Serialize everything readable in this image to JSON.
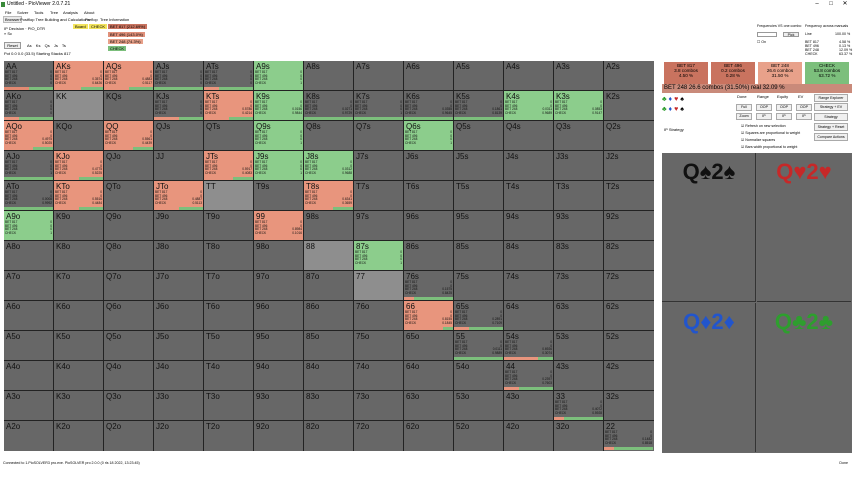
{
  "window": {
    "title": "Untitled - PioViewer 2.0.7.21",
    "controls": [
      "–",
      "□",
      "✕"
    ]
  },
  "menu": [
    "File",
    "Solver",
    "Tools",
    "Tree",
    "Analysis",
    "About"
  ],
  "tabs": [
    "Browser",
    "Postflop Tree Building and Calculations",
    "Preflop",
    "Tree Information"
  ],
  "info": {
    "line1": "IP Decision · PIO_DTR",
    "line2": "» Sc",
    "reset": "Reset",
    "suits": [
      "As",
      "Ks",
      "Qs",
      "Js",
      "Ts"
    ],
    "pot": "Pot 0.0 0.0 (33.5) Starting Stacks 817"
  },
  "legend": {
    "board": "Board",
    "check": "CHECK",
    "bet1": "BET 817 (212.69%)",
    "bet2": "BET 496 (143.0%)",
    "bet3": "BET 248 (74.3%)",
    "check2": "CHECK"
  },
  "freq": {
    "hdr1": "Frequencies VS one combo",
    "hdr2": "Frequency across manuals",
    "input_value": "",
    "pick": "Pick",
    "on": "On",
    "line": "Line",
    "line_val": "100.00 %",
    "rows": [
      {
        "name": "BET 817",
        "v": "4.58 %"
      },
      {
        "name": "BET 496",
        "v": "0.13 %"
      },
      {
        "name": "BET 248",
        "v": "12.09 %"
      },
      {
        "name": "CHECK",
        "v": "63.37 %"
      }
    ]
  },
  "actions": [
    {
      "name": "BET 817",
      "combos": "3.8 combos",
      "pct": "4.50 %",
      "color": "#c9735f"
    },
    {
      "name": "BET 496",
      "combos": "0.2 combos",
      "pct": "0.28 %",
      "color": "#c9735f"
    },
    {
      "name": "BET 248",
      "combos": "26.6 combos",
      "pct": "31.50 %",
      "color": "#e8a18a"
    },
    {
      "name": "CHECK",
      "combos": "53.8 combos",
      "pct": "63.72 %",
      "color": "#7cbf7c"
    }
  ],
  "summary": "BET 248   26.6 combos (31.50%) real 32.09 %",
  "subtabs": [
    "Done",
    "Range",
    "Equity",
    "EV"
  ],
  "smallbtns": [
    "Full",
    "OOP",
    "OOP",
    "OOP",
    "Zoom",
    "IP",
    "IP",
    "IP"
  ],
  "rightbtns": [
    "Range Explorer",
    "Strategy + EV",
    "Strategy",
    "Strategy + Reset",
    "Compare Actions"
  ],
  "checks": [
    "Refresh on new selection",
    "Squares are proportional to weight",
    "Normalize squares",
    "Bars width proportional to weight"
  ],
  "ip_label": "IP Strategy",
  "boards": [
    {
      "text": "Q♠2♠",
      "color": "#111111"
    },
    {
      "text": "Q♥2♥",
      "color": "#c62828"
    },
    {
      "text": "Q♦2♦",
      "color": "#2255cc"
    },
    {
      "text": "Q♣2♣",
      "color": "#2e9e2e"
    }
  ],
  "status_left": "Connected to 1.PioSOLVER3 pro.exe. PioSOLVER pro 2.0.0 (0 rls 18 2022, 13:23:45)",
  "status_right": "Done",
  "action_labels": [
    "BET 817",
    "BET 496",
    "BET 248",
    "CHECK"
  ],
  "hands": [
    [
      "AA",
      "AKs",
      "AQs",
      "AJs",
      "ATs",
      "A9s",
      "A8s",
      "A7s",
      "A6s",
      "A5s",
      "A4s",
      "A3s",
      "A2s"
    ],
    [
      "AKo",
      "KK",
      "KQs",
      "KJs",
      "KTs",
      "K9s",
      "K8s",
      "K7s",
      "K6s",
      "K5s",
      "K4s",
      "K3s",
      "K2s"
    ],
    [
      "AQo",
      "KQo",
      "QQ",
      "QJs",
      "QTs",
      "Q9s",
      "Q8s",
      "Q7s",
      "Q6s",
      "Q5s",
      "Q4s",
      "Q3s",
      "Q2s"
    ],
    [
      "AJo",
      "KJo",
      "QJo",
      "JJ",
      "JTs",
      "J9s",
      "J8s",
      "J7s",
      "J6s",
      "J5s",
      "J4s",
      "J3s",
      "J2s"
    ],
    [
      "ATo",
      "KTo",
      "QTo",
      "JTo",
      "TT",
      "T9s",
      "T8s",
      "T7s",
      "T6s",
      "T5s",
      "T4s",
      "T3s",
      "T2s"
    ],
    [
      "A9o",
      "K9o",
      "Q9o",
      "J9o",
      "T9o",
      "99",
      "98s",
      "97s",
      "96s",
      "95s",
      "94s",
      "93s",
      "92s"
    ],
    [
      "A8o",
      "K8o",
      "Q8o",
      "J8o",
      "T8o",
      "98o",
      "88",
      "87s",
      "86s",
      "85s",
      "84s",
      "83s",
      "82s"
    ],
    [
      "A7o",
      "K7o",
      "Q7o",
      "J7o",
      "T7o",
      "97o",
      "87o",
      "77",
      "76s",
      "75s",
      "74s",
      "73s",
      "72s"
    ],
    [
      "A6o",
      "K6o",
      "Q6o",
      "J6o",
      "T6o",
      "96o",
      "86o",
      "76o",
      "66",
      "65s",
      "64s",
      "63s",
      "62s"
    ],
    [
      "A5o",
      "K5o",
      "Q5o",
      "J5o",
      "T5o",
      "95o",
      "85o",
      "75o",
      "65o",
      "55",
      "54s",
      "53s",
      "52s"
    ],
    [
      "A4o",
      "K4o",
      "Q4o",
      "J4o",
      "T4o",
      "94o",
      "84o",
      "74o",
      "64o",
      "54o",
      "44",
      "43s",
      "42s"
    ],
    [
      "A3o",
      "K3o",
      "Q3o",
      "J3o",
      "T3o",
      "93o",
      "83o",
      "73o",
      "63o",
      "53o",
      "43o",
      "33",
      "32s"
    ],
    [
      "A2o",
      "K2o",
      "Q2o",
      "J2o",
      "T2o",
      "92o",
      "82o",
      "72o",
      "62o",
      "52o",
      "42o",
      "32o",
      "22"
    ]
  ],
  "strats": {
    "AA": {
      "bg": "#676767",
      "bars": [
        [
          "#e28a72",
          0.5
        ],
        [
          "#7cbf7c",
          0.5
        ]
      ],
      "vals": [
        "0",
        "0",
        "0",
        "0"
      ]
    },
    "AKs": {
      "bg": "#e8957d",
      "bars": [
        [
          "#e8957d",
          0.55
        ],
        [
          "#7cbf7c",
          0.45
        ]
      ],
      "vals": [
        "0",
        "0",
        "0.3574",
        "0.6426"
      ]
    },
    "AQs": {
      "bg": "#e8957d",
      "bars": [
        [
          "#e8957d",
          0.5
        ],
        [
          "#7cbf7c",
          0.5
        ]
      ],
      "vals": [
        "0",
        "0",
        "0.4883",
        "0.5117"
      ]
    },
    "AJs": {
      "bg": "#676767",
      "bars": [
        [
          "#7cbf7c",
          1
        ]
      ],
      "vals": [
        "0",
        "0",
        "0",
        "0"
      ]
    },
    "ATs": {
      "bg": "#676767",
      "bars": [
        [
          "#e8957d",
          0.3
        ],
        [
          "#7cbf7c",
          0.7
        ]
      ],
      "vals": [
        "0",
        "0",
        "0",
        "0"
      ]
    },
    "A9s": {
      "bg": "#8ccd8c",
      "bars": [
        [
          "#8ccd8c",
          1
        ]
      ],
      "vals": [
        "0",
        "0",
        "0",
        "1"
      ]
    },
    "AKo": {
      "bg": "#676767",
      "bars": [
        [
          "#e8957d",
          0.3
        ],
        [
          "#7cbf7c",
          0.7
        ]
      ],
      "vals": [
        "0",
        "0",
        "0",
        "0"
      ]
    },
    "KJs": {
      "bg": "#676767",
      "bars": [
        [
          "#e8957d",
          0.5
        ],
        [
          "#7cbf7c",
          0.5
        ]
      ],
      "vals": [
        "0",
        "0",
        "0",
        "0"
      ]
    },
    "KTs": {
      "bg": "#e8957d",
      "bars": [
        [
          "#e8957d",
          0.5
        ],
        [
          "#7cbf7c",
          0.5
        ]
      ],
      "vals": [
        "0",
        "0",
        "0.5786",
        "0.4214"
      ]
    },
    "K9s": {
      "bg": "#8ccd8c",
      "bars": [
        [
          "#8ccd8c",
          1
        ]
      ],
      "vals": [
        "0",
        "0",
        "0.0156",
        "0.9844"
      ]
    },
    "K8s": {
      "bg": "#676767",
      "bars": [
        [
          "#7cbf7c",
          1
        ]
      ],
      "vals": [
        "0",
        "0",
        "0.0271",
        "0.9729"
      ]
    },
    "K7s": {
      "bg": "#676767",
      "bars": [
        [
          "#7cbf7c",
          1
        ]
      ],
      "vals": [
        "0",
        "0",
        "0",
        "1"
      ]
    },
    "K6s": {
      "bg": "#676767",
      "bars": [
        [
          "#7cbf7c",
          1
        ]
      ],
      "vals": [
        "0",
        "0",
        "0.0355",
        "0.9645"
      ]
    },
    "K5s": {
      "bg": "#676767",
      "bars": [
        [
          "#7cbf7c",
          1
        ]
      ],
      "vals": [
        "0",
        "0",
        "0.1861",
        "0.8139"
      ]
    },
    "K4s": {
      "bg": "#8ccd8c",
      "bars": [
        [
          "#8ccd8c",
          1
        ]
      ],
      "vals": [
        "0",
        "0",
        "0.0311",
        "0.9689"
      ]
    },
    "K3s": {
      "bg": "#8ccd8c",
      "bars": [
        [
          "#8ccd8c",
          1
        ]
      ],
      "vals": [
        "0",
        "0",
        "0.0853",
        "0.9147"
      ]
    },
    "AQo": {
      "bg": "#e8957d",
      "bars": [
        [
          "#e8957d",
          0.6
        ],
        [
          "#7cbf7c",
          0.4
        ]
      ],
      "vals": [
        "0",
        "0",
        "0.4975",
        "0.5025"
      ]
    },
    "QQ": {
      "bg": "#e8957d",
      "bars": [
        [
          "#e8957d",
          0.6
        ],
        [
          "#7cbf7c",
          0.4
        ]
      ],
      "vals": [
        "0",
        "0",
        "0.5561",
        "0.4439"
      ]
    },
    "Q9s": {
      "bg": "#8ccd8c",
      "bars": [
        [
          "#8ccd8c",
          1
        ]
      ],
      "vals": [
        "0",
        "0",
        "0",
        "1"
      ]
    },
    "Q6s": {
      "bg": "#8ccd8c",
      "bars": [
        [
          "#8ccd8c",
          1
        ]
      ],
      "vals": [
        "0",
        "0",
        "0",
        "1"
      ]
    },
    "AJo": {
      "bg": "#676767",
      "bars": [
        [
          "#7cbf7c",
          1
        ]
      ],
      "vals": [
        "0",
        "0",
        "0",
        "1"
      ]
    },
    "KJo": {
      "bg": "#e8957d",
      "bars": [
        [
          "#e8957d",
          0.5
        ],
        [
          "#7cbf7c",
          0.5
        ]
      ],
      "vals": [
        "0",
        "0",
        "0.4775",
        "0.5225"
      ]
    },
    "JTs": {
      "bg": "#e8957d",
      "bars": [
        [
          "#e8957d",
          0.6
        ],
        [
          "#7cbf7c",
          0.4
        ]
      ],
      "vals": [
        "0",
        "0",
        "0.5917",
        "0.4083"
      ]
    },
    "J9s": {
      "bg": "#8ccd8c",
      "bars": [
        [
          "#8ccd8c",
          1
        ]
      ],
      "vals": [
        "0",
        "0",
        "0",
        "1"
      ]
    },
    "J8s": {
      "bg": "#8ccd8c",
      "bars": [
        [
          "#8ccd8c",
          1
        ]
      ],
      "vals": [
        "0",
        "0",
        "0.0312",
        "0.9688"
      ]
    },
    "ATo": {
      "bg": "#676767",
      "bars": [
        [
          "#7cbf7c",
          1
        ]
      ],
      "vals": [
        "0",
        "0",
        "0.0008",
        "0.9992"
      ]
    },
    "KTo": {
      "bg": "#e8957d",
      "bars": [
        [
          "#e8957d",
          0.5
        ],
        [
          "#7cbf7c",
          0.5
        ]
      ],
      "vals": [
        "0",
        "0",
        "0.5516",
        "0.4484"
      ]
    },
    "JTo": {
      "bg": "#e8957d",
      "bars": [
        [
          "#e8957d",
          0.5
        ],
        [
          "#7cbf7c",
          0.5
        ]
      ],
      "vals": [
        "0",
        "0",
        "0.4887",
        "0.5113"
      ]
    },
    "T8s": {
      "bg": "#e8957d",
      "bars": [
        [
          "#e8957d",
          0.6
        ],
        [
          "#7cbf7c",
          0.4
        ]
      ],
      "vals": [
        "0",
        "0",
        "0.6341",
        "0.3659"
      ]
    },
    "A9o": {
      "bg": "#8ccd8c",
      "bars": [
        [
          "#8ccd8c",
          1
        ]
      ],
      "vals": [
        "0",
        "0",
        "0",
        "1"
      ]
    },
    "99": {
      "bg": "#e8957d",
      "bars": [
        [
          "#e8957d",
          1
        ]
      ],
      "vals": [
        "0",
        "0",
        "0.8984",
        "0.1016"
      ]
    },
    "87s": {
      "bg": "#8ccd8c",
      "bars": [
        [
          "#8ccd8c",
          1
        ]
      ],
      "vals": [
        "0",
        "0",
        "0",
        "1"
      ]
    },
    "76s": {
      "bg": "#676767",
      "bars": [
        [
          "#e8957d",
          0.2
        ],
        [
          "#7cbf7c",
          0.8
        ]
      ],
      "vals": [
        "0",
        "0",
        "0.1575",
        "0.8425"
      ]
    },
    "66": {
      "bg": "#e8957d",
      "bars": [
        [
          "#e8957d",
          0.8
        ],
        [
          "#7cbf7c",
          0.2
        ]
      ],
      "vals": [
        "0",
        "0",
        "0.8155",
        "0.1845"
      ]
    },
    "65s": {
      "bg": "#676767",
      "bars": [
        [
          "#e8957d",
          0.3
        ],
        [
          "#7cbf7c",
          0.7
        ]
      ],
      "vals": [
        "0",
        "0",
        "0.2891",
        "0.7109"
      ]
    },
    "55": {
      "bg": "#676767",
      "bars": [
        [
          "#7cbf7c",
          1
        ]
      ],
      "vals": [
        "0",
        "0",
        "0.0111",
        "0.9889"
      ]
    },
    "54s": {
      "bg": "#676767",
      "bars": [
        [
          "#e8957d",
          0.7
        ],
        [
          "#7cbf7c",
          0.3
        ]
      ],
      "vals": [
        "0",
        "0",
        "0.6926",
        "0.3074"
      ]
    },
    "44": {
      "bg": "#676767",
      "bars": [
        [
          "#e8957d",
          0.3
        ],
        [
          "#7cbf7c",
          0.7
        ]
      ],
      "vals": [
        "0",
        "0",
        "0.2397",
        "0.7603"
      ]
    },
    "33": {
      "bg": "#676767",
      "bars": [
        [
          "#e8957d",
          0.2
        ],
        [
          "#7cbf7c",
          0.8
        ]
      ],
      "vals": [
        "0",
        "0",
        "0.4072",
        "0.5928"
      ]
    },
    "22": {
      "bg": "#676767",
      "bars": [
        [
          "#e8957d",
          0.2
        ],
        [
          "#7cbf7c",
          0.8
        ]
      ],
      "vals": [
        "0",
        "0",
        "0.1482",
        "0.8518"
      ]
    }
  },
  "gray_cells": [
    "KK",
    "77",
    "88",
    "TT"
  ]
}
